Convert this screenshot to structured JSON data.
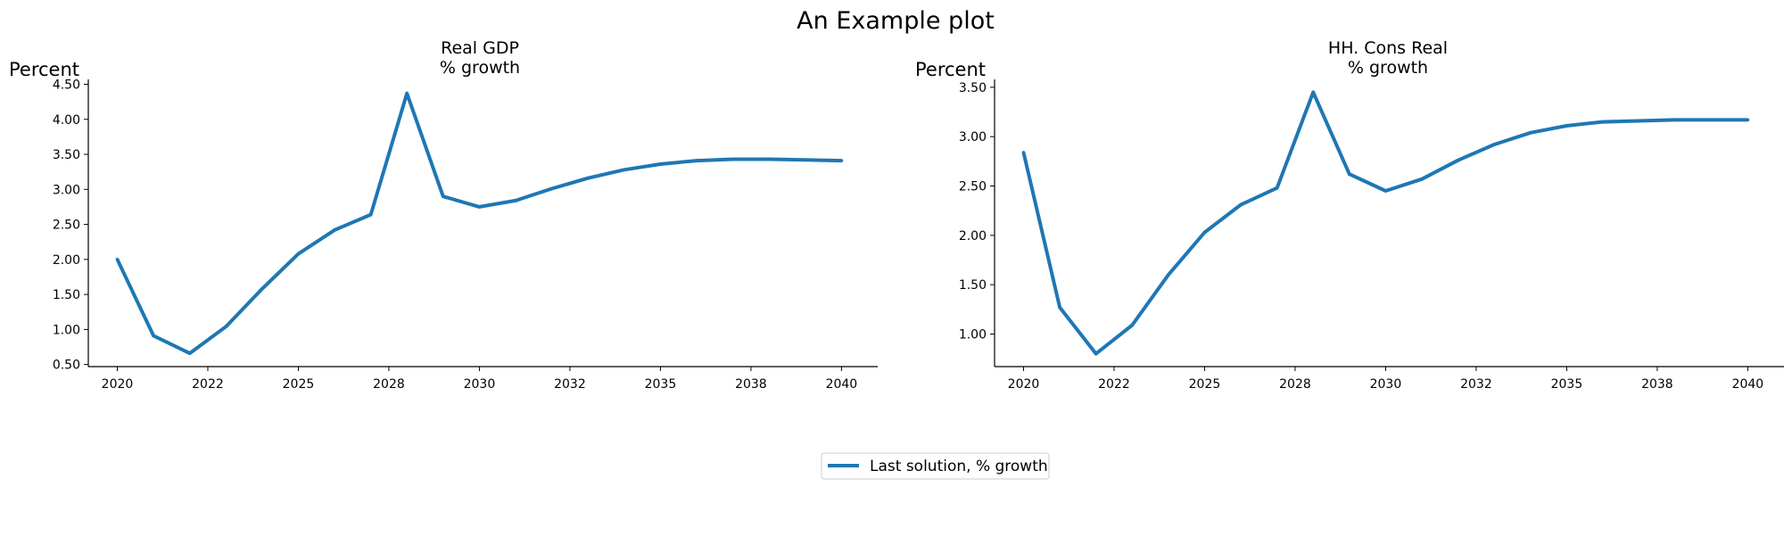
{
  "figure": {
    "title": "An Example plot",
    "legend_label": "Last solution, % growth",
    "series_color": "#1f77b4"
  },
  "chart_data": [
    {
      "type": "line",
      "title_lines": [
        "Real GDP",
        "% growth"
      ],
      "ylabel": "Percent",
      "xlabel": "",
      "xlim": [
        2019.2,
        2041.0
      ],
      "ylim": [
        0.47,
        4.57
      ],
      "xticks": [
        2020,
        2022.5,
        2025,
        2027.5,
        2030,
        2032.5,
        2035,
        2037.5,
        2040
      ],
      "xtick_labels": [
        "2020",
        "2022",
        "2025",
        "2028",
        "2030",
        "2032",
        "2035",
        "2038",
        "2040"
      ],
      "yticks": [
        0.5,
        1.0,
        1.5,
        2.0,
        2.5,
        3.0,
        3.5,
        4.0,
        4.5
      ],
      "ytick_labels": [
        "0.50",
        "1.00",
        "1.50",
        "2.00",
        "2.50",
        "3.00",
        "3.50",
        "4.00",
        "4.50"
      ],
      "grid": false,
      "legend_position": "below-center",
      "series": [
        {
          "name": "Last solution, % growth",
          "x": [
            2020,
            2021,
            2022,
            2023,
            2024,
            2025,
            2026,
            2027,
            2028,
            2029,
            2030,
            2031,
            2032,
            2033,
            2034,
            2035,
            2036,
            2037,
            2038,
            2039,
            2040
          ],
          "values": [
            2.0,
            0.91,
            0.66,
            1.04,
            1.58,
            2.08,
            2.42,
            2.64,
            4.37,
            2.9,
            2.75,
            2.84,
            3.01,
            3.16,
            3.28,
            3.36,
            3.41,
            3.43,
            3.43,
            3.42,
            3.41
          ]
        }
      ]
    },
    {
      "type": "line",
      "title_lines": [
        "HH. Cons Real",
        "% growth"
      ],
      "ylabel": "Percent",
      "xlabel": "",
      "xlim": [
        2019.2,
        2041.0
      ],
      "ylim": [
        0.67,
        3.58
      ],
      "xticks": [
        2020,
        2022.5,
        2025,
        2027.5,
        2030,
        2032.5,
        2035,
        2037.5,
        2040
      ],
      "xtick_labels": [
        "2020",
        "2022",
        "2025",
        "2028",
        "2030",
        "2032",
        "2035",
        "2038",
        "2040"
      ],
      "yticks": [
        1.0,
        1.5,
        2.0,
        2.5,
        3.0,
        3.5
      ],
      "ytick_labels": [
        "1.00",
        "1.50",
        "2.00",
        "2.50",
        "3.00",
        "3.50"
      ],
      "grid": false,
      "legend_position": "below-center",
      "series": [
        {
          "name": "Last solution, % growth",
          "x": [
            2020,
            2021,
            2022,
            2023,
            2024,
            2025,
            2026,
            2027,
            2028,
            2029,
            2030,
            2031,
            2032,
            2033,
            2034,
            2035,
            2036,
            2037,
            2038,
            2039,
            2040
          ],
          "values": [
            2.84,
            1.27,
            0.8,
            1.09,
            1.6,
            2.03,
            2.31,
            2.48,
            3.45,
            2.62,
            2.45,
            2.57,
            2.76,
            2.92,
            3.04,
            3.11,
            3.15,
            3.16,
            3.17,
            3.17,
            3.17
          ]
        }
      ]
    }
  ]
}
